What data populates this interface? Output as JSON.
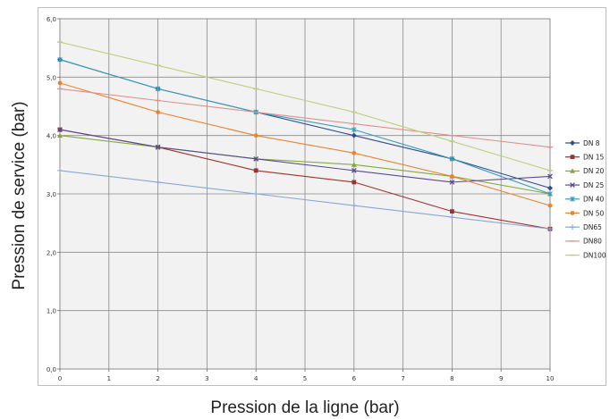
{
  "chart_data": {
    "type": "line",
    "title": "",
    "xlabel": "Pression de la ligne (bar)",
    "ylabel": "Pression de service (bar)",
    "xlim": [
      0,
      10
    ],
    "ylim": [
      0,
      6
    ],
    "x_ticks": [
      "0",
      "1",
      "2",
      "3",
      "4",
      "5",
      "6",
      "7",
      "8",
      "9",
      "10"
    ],
    "y_ticks": [
      "0,0",
      "1,0",
      "2,0",
      "3,0",
      "4,0",
      "5,0",
      "6,0"
    ],
    "grid": true,
    "legend_position": "right",
    "x": [
      0,
      2,
      4,
      6,
      8,
      10
    ],
    "series": [
      {
        "name": "DN 8",
        "color": "#2f4f8f",
        "marker": "diamond",
        "values": [
          5.3,
          4.8,
          4.4,
          4.0,
          3.6,
          3.1
        ]
      },
      {
        "name": "DN 15",
        "color": "#a0302e",
        "marker": "square",
        "values": [
          4.1,
          3.8,
          3.4,
          3.2,
          2.7,
          2.4
        ]
      },
      {
        "name": "DN 20",
        "color": "#86a83a",
        "marker": "triangle",
        "values": [
          4.0,
          3.8,
          3.6,
          3.5,
          3.3,
          3.0
        ]
      },
      {
        "name": "DN 25",
        "color": "#5b4a92",
        "marker": "x",
        "values": [
          4.1,
          3.8,
          3.6,
          3.4,
          3.2,
          3.3
        ]
      },
      {
        "name": "DN 40",
        "color": "#3a9bb8",
        "marker": "star",
        "values": [
          5.3,
          4.8,
          4.4,
          4.1,
          3.6,
          3.0
        ]
      },
      {
        "name": "DN 50",
        "color": "#e8842e",
        "marker": "circle",
        "values": [
          4.9,
          4.4,
          4.0,
          3.7,
          3.3,
          2.8
        ]
      },
      {
        "name": "DN65",
        "color": "#8aa6d6",
        "marker": "plus",
        "values": [
          3.4,
          3.2,
          3.0,
          2.8,
          2.6,
          2.4
        ]
      },
      {
        "name": "DN80",
        "color": "#e0908c",
        "marker": "dash",
        "values": [
          4.8,
          4.6,
          4.4,
          4.2,
          4.0,
          3.8
        ]
      },
      {
        "name": "DN100",
        "color": "#b9d07a",
        "marker": "dash",
        "values": [
          5.6,
          5.2,
          4.8,
          4.4,
          3.9,
          3.4
        ]
      }
    ]
  }
}
